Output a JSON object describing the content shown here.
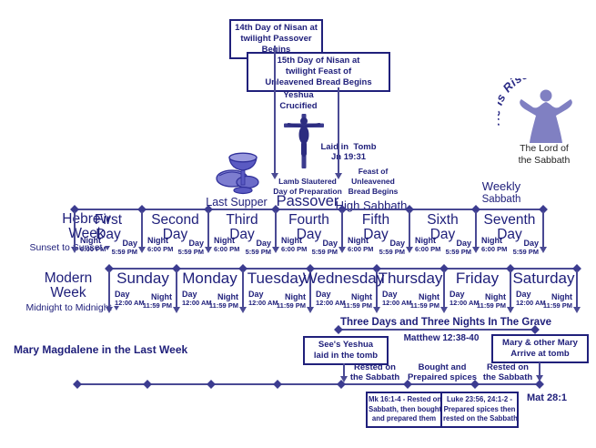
{
  "colors": {
    "text_navy": "#20207b",
    "line": "#4a4a94",
    "diamond": "#3c3c90",
    "icon_purple": "#7d7dd0",
    "icon_dark": "#30309a",
    "risen_text": "#2a2a85"
  },
  "top": {
    "nisan14_box": [
      "14th Day of Nisan at",
      "twilight Passover Begins"
    ],
    "nisan15_box": [
      "15th Day of Nisan at",
      "twilight Feast of",
      "Unleavened Bread Begins"
    ],
    "yeshua_crucified": [
      "Yeshua",
      "Crucified"
    ],
    "laid_in_tomb": [
      "Laid in  Tomb",
      "Jn 19:31"
    ],
    "lamb_slautered": [
      "Lamb Slautered",
      "Day of Preparation"
    ],
    "feast_unleavened": [
      "Feast of",
      "Unleavened",
      "Bread Begins"
    ],
    "last_supper": "Last Supper",
    "passover": "Passover",
    "high_sabbath": "High Sabbath",
    "weekly_sabbath": [
      "Weekly",
      "Sabbath"
    ],
    "he_is_risen": "He Is Risen!",
    "lord_of_sabbath": [
      "The Lord of",
      "the Sabbath"
    ]
  },
  "hebrew_week": {
    "title": [
      "Hebrew",
      "Week"
    ],
    "subtitle": "Sunset to Sunset",
    "day_word": "Day",
    "day_names": [
      "First",
      "Second",
      "Third",
      "Fourth",
      "Fifth",
      "Sixth",
      "Seventh"
    ],
    "segment_start": {
      "label": "Night",
      "time": "6:00 PM"
    },
    "segment_end": {
      "label": "Day",
      "time": "5:59 PM"
    }
  },
  "modern_week": {
    "title": [
      "Modern",
      "Week"
    ],
    "subtitle": "Midnight to Midnight",
    "day_names": [
      "Sunday",
      "Monday",
      "Tuesday",
      "Wednesday",
      "Thursday",
      "Friday",
      "Saturday"
    ],
    "segment_start": {
      "label": "Day",
      "time": "12:00 AM"
    },
    "segment_end": {
      "label": "Night",
      "time": "11:59 PM"
    }
  },
  "grave": {
    "title": "Three Days and Three Nights In The Grave",
    "reference": "Matthew 12:38-40"
  },
  "mary": {
    "title": "Mary Magdalene in the Last Week",
    "sees_box": [
      "See's Yeshua",
      "laid in the tomb"
    ],
    "arrive_box": [
      "Mary & other Mary",
      "Arrive at tomb"
    ],
    "events": [
      [
        "Rested on",
        "the Sabbath"
      ],
      [
        "Bought and",
        "Prepaired spices"
      ],
      [
        "Rested on",
        "the Sabbath"
      ]
    ],
    "mat_reference": "Mat 28:1",
    "mk_box": [
      "Mk 16:1-4 - Rested on",
      "Sabbath, then bought",
      "and prepared them"
    ],
    "luke_box": [
      "Luke 23:56, 24:1-2 -",
      "Prepared spices then",
      "rested on the Sabbath"
    ]
  }
}
